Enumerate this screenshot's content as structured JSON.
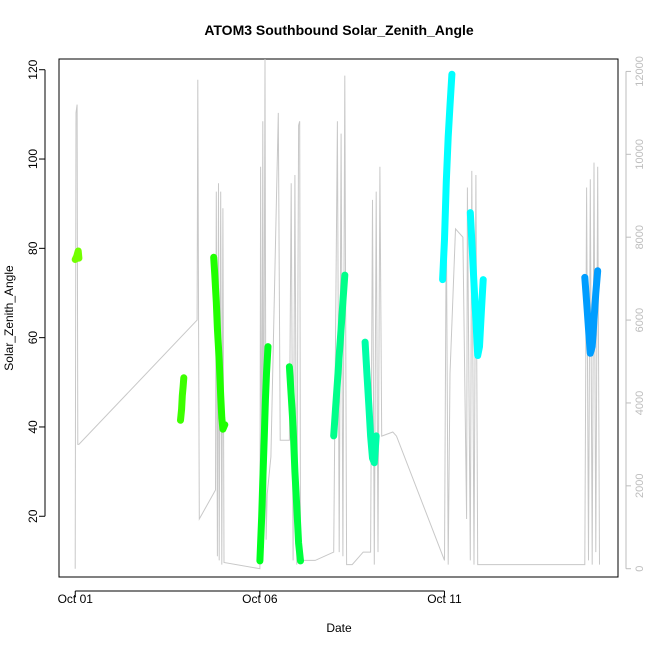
{
  "chart_data": {
    "type": "line",
    "title": "ATOM3 Southbound Solar_Zenith_Angle",
    "xlabel": "Date",
    "ylabel": "Solar_Zenith_Angle",
    "x_ticks": [
      "Oct 01",
      "Oct 06",
      "Oct 11"
    ],
    "x_tick_days": [
      1,
      6,
      11
    ],
    "xlim": [
      0.56,
      15.7
    ],
    "ylim": [
      6.4,
      122.4
    ],
    "y_ticks": [
      20,
      40,
      60,
      80,
      100,
      120
    ],
    "y2lim": [
      -200,
      12300
    ],
    "y2_ticks": [
      0,
      2000,
      4000,
      6000,
      8000,
      10000,
      12000
    ],
    "grid": false,
    "altitude_color": "#c8c8c8",
    "altitude_path": [
      [
        1.0,
        0
      ],
      [
        1.02,
        11000
      ],
      [
        1.05,
        11200
      ],
      [
        1.07,
        3000
      ],
      [
        1.1,
        3000
      ],
      [
        4.3,
        6000
      ],
      [
        4.32,
        11800
      ],
      [
        4.34,
        5800
      ],
      [
        4.36,
        1200
      ],
      [
        4.8,
        1900
      ],
      [
        4.82,
        9100
      ],
      [
        4.85,
        300
      ],
      [
        4.88,
        9300
      ],
      [
        4.9,
        200
      ],
      [
        4.94,
        9100
      ],
      [
        4.97,
        100
      ],
      [
        5.0,
        8700
      ],
      [
        5.03,
        150
      ],
      [
        6.0,
        0
      ],
      [
        6.02,
        9700
      ],
      [
        6.05,
        300
      ],
      [
        6.08,
        10800
      ],
      [
        6.1,
        500
      ],
      [
        6.14,
        12300
      ],
      [
        6.17,
        700
      ],
      [
        6.2,
        1800
      ],
      [
        6.3,
        2700
      ],
      [
        6.5,
        11000
      ],
      [
        6.55,
        3100
      ],
      [
        6.8,
        3100
      ],
      [
        6.85,
        9300
      ],
      [
        6.9,
        200
      ],
      [
        6.95,
        9500
      ],
      [
        7.0,
        100
      ],
      [
        7.05,
        10700
      ],
      [
        7.08,
        10800
      ],
      [
        7.1,
        200
      ],
      [
        7.3,
        200
      ],
      [
        7.5,
        200
      ],
      [
        8.0,
        400
      ],
      [
        8.1,
        10800
      ],
      [
        8.15,
        400
      ],
      [
        8.2,
        10500
      ],
      [
        8.25,
        300
      ],
      [
        8.3,
        11900
      ],
      [
        8.35,
        100
      ],
      [
        8.5,
        100
      ],
      [
        8.8,
        400
      ],
      [
        9.0,
        400
      ],
      [
        9.05,
        8900
      ],
      [
        9.1,
        100
      ],
      [
        9.15,
        9100
      ],
      [
        9.2,
        400
      ],
      [
        9.25,
        9700
      ],
      [
        9.3,
        3200
      ],
      [
        9.6,
        3300
      ],
      [
        9.7,
        3200
      ],
      [
        11.0,
        200
      ],
      [
        11.05,
        8600
      ],
      [
        11.1,
        100
      ],
      [
        11.15,
        4700
      ],
      [
        11.3,
        8200
      ],
      [
        11.5,
        8000
      ],
      [
        11.6,
        1200
      ],
      [
        11.62,
        9200
      ],
      [
        11.7,
        200
      ],
      [
        11.74,
        9600
      ],
      [
        11.8,
        100
      ],
      [
        11.85,
        9500
      ],
      [
        11.9,
        100
      ],
      [
        13.0,
        100
      ],
      [
        14.0,
        100
      ],
      [
        14.8,
        100
      ],
      [
        14.85,
        9200
      ],
      [
        14.9,
        200
      ],
      [
        14.95,
        9400
      ],
      [
        15.0,
        100
      ],
      [
        15.05,
        9800
      ],
      [
        15.1,
        400
      ],
      [
        15.15,
        9700
      ],
      [
        15.2,
        100
      ]
    ],
    "series": [
      {
        "color": "#73ff00",
        "points": [
          [
            1.0,
            77.5
          ],
          [
            1.04,
            78.2
          ],
          [
            1.08,
            79.4
          ],
          [
            1.1,
            77.8
          ]
        ]
      },
      {
        "color": "#3dff00",
        "points": [
          [
            3.85,
            41.5
          ],
          [
            3.88,
            44.0
          ],
          [
            3.9,
            47.0
          ],
          [
            3.92,
            49.0
          ],
          [
            3.94,
            51.0
          ]
        ]
      },
      {
        "color": "#20ff00",
        "points": [
          [
            4.75,
            78.0
          ],
          [
            4.78,
            74.0
          ],
          [
            4.82,
            68.0
          ],
          [
            4.85,
            62.0
          ],
          [
            4.9,
            55.0
          ],
          [
            4.94,
            47.0
          ],
          [
            4.97,
            42.0
          ],
          [
            5.0,
            39.5
          ],
          [
            5.05,
            40.5
          ]
        ]
      },
      {
        "color": "#00ff1e",
        "points": [
          [
            6.0,
            10.0
          ],
          [
            6.05,
            20.0
          ],
          [
            6.08,
            28.0
          ],
          [
            6.12,
            38.0
          ],
          [
            6.15,
            46.0
          ],
          [
            6.18,
            52.0
          ],
          [
            6.22,
            58.0
          ]
        ]
      },
      {
        "color": "#00ff3d",
        "points": [
          [
            6.8,
            53.5
          ],
          [
            6.85,
            47.0
          ],
          [
            6.9,
            40.0
          ],
          [
            6.95,
            30.0
          ],
          [
            7.0,
            22.0
          ],
          [
            7.05,
            14.0
          ],
          [
            7.1,
            10.0
          ]
        ]
      },
      {
        "color": "#00ff8a",
        "points": [
          [
            8.0,
            38.0
          ],
          [
            8.05,
            44.0
          ],
          [
            8.1,
            50.0
          ],
          [
            8.15,
            56.0
          ],
          [
            8.2,
            62.0
          ],
          [
            8.25,
            68.0
          ],
          [
            8.3,
            74.0
          ]
        ]
      },
      {
        "color": "#00ffa8",
        "points": [
          [
            8.85,
            59.0
          ],
          [
            8.9,
            52.0
          ],
          [
            8.95,
            45.0
          ],
          [
            9.0,
            38.0
          ],
          [
            9.05,
            33.0
          ],
          [
            9.1,
            32.0
          ],
          [
            9.15,
            38.0
          ]
        ]
      },
      {
        "color": "#00ffff",
        "points": [
          [
            10.95,
            73.0
          ],
          [
            11.0,
            82.0
          ],
          [
            11.05,
            95.0
          ],
          [
            11.1,
            105.0
          ],
          [
            11.15,
            112.0
          ],
          [
            11.2,
            119.0
          ]
        ]
      },
      {
        "color": "#00ffff",
        "points": [
          [
            11.7,
            88.0
          ],
          [
            11.75,
            80.0
          ],
          [
            11.8,
            72.0
          ],
          [
            11.85,
            64.0
          ],
          [
            11.9,
            56.0
          ],
          [
            11.95,
            58.0
          ],
          [
            12.0,
            66.0
          ],
          [
            12.05,
            73.0
          ]
        ]
      },
      {
        "color": "#009dff",
        "points": [
          [
            14.8,
            73.5
          ],
          [
            14.85,
            68.0
          ],
          [
            14.9,
            62.0
          ],
          [
            14.95,
            56.5
          ],
          [
            15.0,
            58.0
          ],
          [
            15.05,
            64.0
          ],
          [
            15.1,
            70.0
          ],
          [
            15.15,
            75.0
          ]
        ]
      }
    ]
  }
}
